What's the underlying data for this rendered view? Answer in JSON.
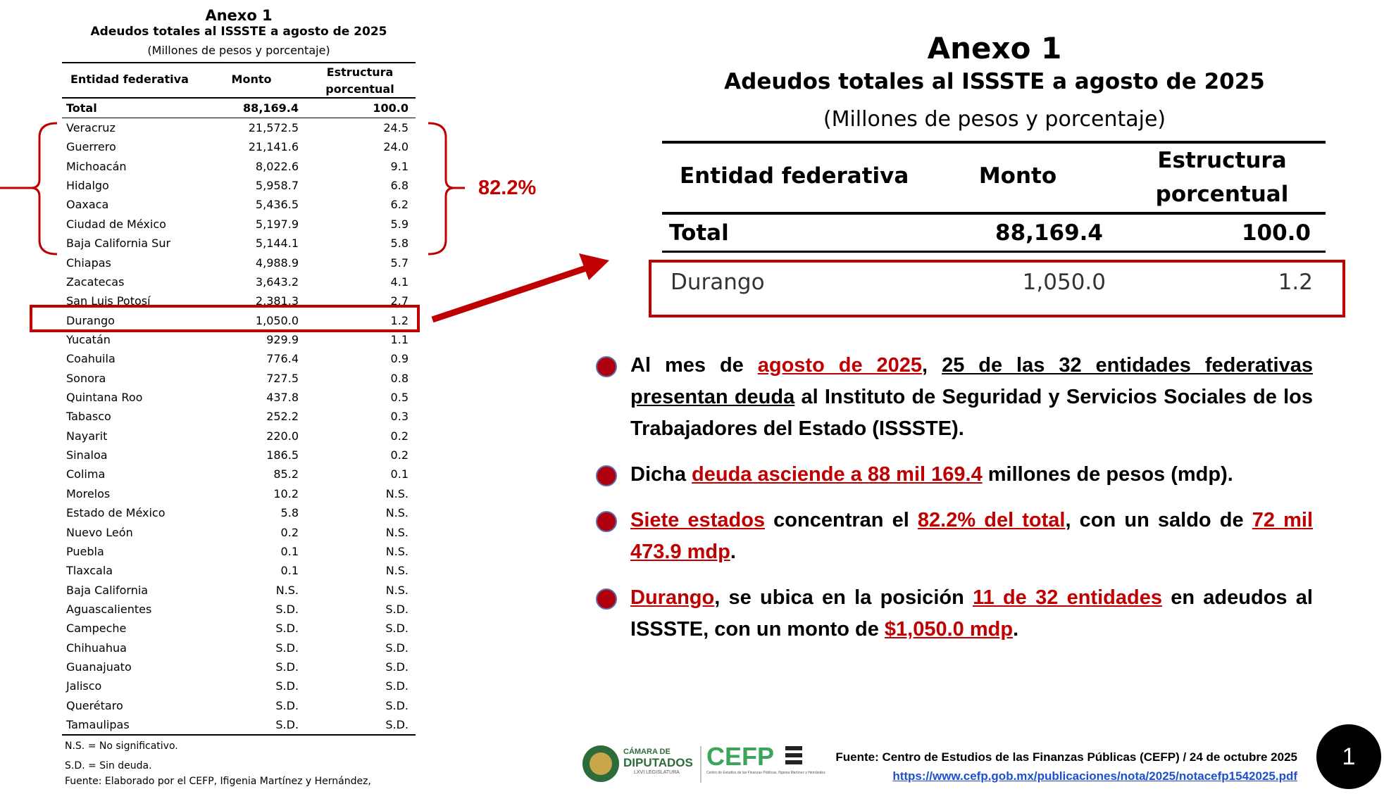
{
  "left_table": {
    "title": "Anexo 1",
    "subtitle": "Adeudos totales al ISSSTE a agosto de 2025",
    "unit": "(Millones de pesos y porcentaje)",
    "headers": [
      "Entidad federativa",
      "Monto",
      "Estructura",
      "porcentual"
    ],
    "total": [
      "Total",
      "88,169.4",
      "100.0"
    ],
    "rows": [
      [
        "Veracruz",
        "21,572.5",
        "24.5"
      ],
      [
        "Guerrero",
        "21,141.6",
        "24.0"
      ],
      [
        "Michoacán",
        "8,022.6",
        "9.1"
      ],
      [
        "Hidalgo",
        "5,958.7",
        "6.8"
      ],
      [
        "Oaxaca",
        "5,436.5",
        "6.2"
      ],
      [
        "Ciudad de México",
        "5,197.9",
        "5.9"
      ],
      [
        "Baja California Sur",
        "5,144.1",
        "5.8"
      ],
      [
        "Chiapas",
        "4,988.9",
        "5.7"
      ],
      [
        "Zacatecas",
        "3,643.2",
        "4.1"
      ],
      [
        "San Luis Potosí",
        "2,381.3",
        "2.7"
      ],
      [
        "Durango",
        "1,050.0",
        "1.2"
      ],
      [
        "Yucatán",
        "929.9",
        "1.1"
      ],
      [
        "Coahuila",
        "776.4",
        "0.9"
      ],
      [
        "Sonora",
        "727.5",
        "0.8"
      ],
      [
        "Quintana Roo",
        "437.8",
        "0.5"
      ],
      [
        "Tabasco",
        "252.2",
        "0.3"
      ],
      [
        "Nayarit",
        "220.0",
        "0.2"
      ],
      [
        "Sinaloa",
        "186.5",
        "0.2"
      ],
      [
        "Colima",
        "85.2",
        "0.1"
      ],
      [
        "Morelos",
        "10.2",
        "N.S."
      ],
      [
        "Estado de México",
        "5.8",
        "N.S."
      ],
      [
        "Nuevo León",
        "0.2",
        "N.S."
      ],
      [
        "Puebla",
        "0.1",
        "N.S."
      ],
      [
        "Tlaxcala",
        "0.1",
        "N.S."
      ],
      [
        "Baja California",
        "N.S.",
        "N.S."
      ],
      [
        "Aguascalientes",
        "S.D.",
        "S.D."
      ],
      [
        "Campeche",
        "S.D.",
        "S.D."
      ],
      [
        "Chihuahua",
        "S.D.",
        "S.D."
      ],
      [
        "Guanajuato",
        "S.D.",
        "S.D."
      ],
      [
        "Jalisco",
        "S.D.",
        "S.D."
      ],
      [
        "Querétaro",
        "S.D.",
        "S.D."
      ],
      [
        "Tamaulipas",
        "S.D.",
        "S.D."
      ]
    ],
    "notes": [
      "N.S. = No significativo.",
      "S.D. = Sin deuda.",
      "Fuente: Elaborado por el CEFP, Ifigenia Martínez y Hernández,"
    ]
  },
  "bracket_label": "82.2%",
  "right_table": {
    "title": "Anexo 1",
    "subtitle": "Adeudos totales al ISSSTE a agosto de 2025",
    "unit": "(Millones de pesos y porcentaje)",
    "headers": [
      "Entidad federativa",
      "Monto",
      "Estructura",
      "porcentual"
    ],
    "total": [
      "Total",
      "88,169.4",
      "100.0"
    ],
    "row": [
      "Durango",
      "1,050.0",
      "1.2"
    ]
  },
  "bullets": [
    [
      {
        "text": "Al mes de ",
        "style": "plain"
      },
      {
        "text": "agosto de 2025",
        "style": "red-u"
      },
      {
        "text": ", ",
        "style": "plain"
      },
      {
        "text": "25 de las 32 entidades federativas presentan deuda",
        "style": "u"
      },
      {
        "text": " al Instituto de Seguridad y Servicios Sociales de los Trabajadores del Estado (ISSSTE).",
        "style": "plain"
      }
    ],
    [
      {
        "text": "Dicha ",
        "style": "plain"
      },
      {
        "text": "deuda asciende a 88 mil 169.4",
        "style": "red-u"
      },
      {
        "text": " millones de pesos (mdp).",
        "style": "plain"
      }
    ],
    [
      {
        "text": "Siete estados",
        "style": "red-u"
      },
      {
        "text": " concentran el ",
        "style": "plain"
      },
      {
        "text": "82.2% del total",
        "style": "red-u"
      },
      {
        "text": ", con un saldo de ",
        "style": "plain"
      },
      {
        "text": "72 mil 473.9 mdp",
        "style": "red-u"
      },
      {
        "text": ".",
        "style": "plain"
      }
    ],
    [
      {
        "text": "Durango",
        "style": "red-u"
      },
      {
        "text": ", se ubica en la posición ",
        "style": "plain"
      },
      {
        "text": "11 de 32 entidades",
        "style": "red-u"
      },
      {
        "text": " en adeudos al ISSSTE, con un monto de ",
        "style": "plain"
      },
      {
        "text": "$1,050.0 mdp",
        "style": "red-u"
      },
      {
        "text": ".",
        "style": "plain"
      }
    ]
  ],
  "footer": {
    "logo1_top": "CÁMARA DE",
    "logo1_main": "DIPUTADOS",
    "logo1_sub": "LXVI LEGISLATURA",
    "logo2": "CEFP",
    "logo2_sub": "Centro de Estudios de las Finanzas Públicas, Ifigenia Martínez y Hernández",
    "source": "Fuente: Centro de Estudios de las Finanzas Públicas (CEFP) / 24 de octubre 2025",
    "url": "https://www.cefp.gob.mx/publicaciones/nota/2025/notacefp1542025.pdf",
    "page": "1"
  }
}
